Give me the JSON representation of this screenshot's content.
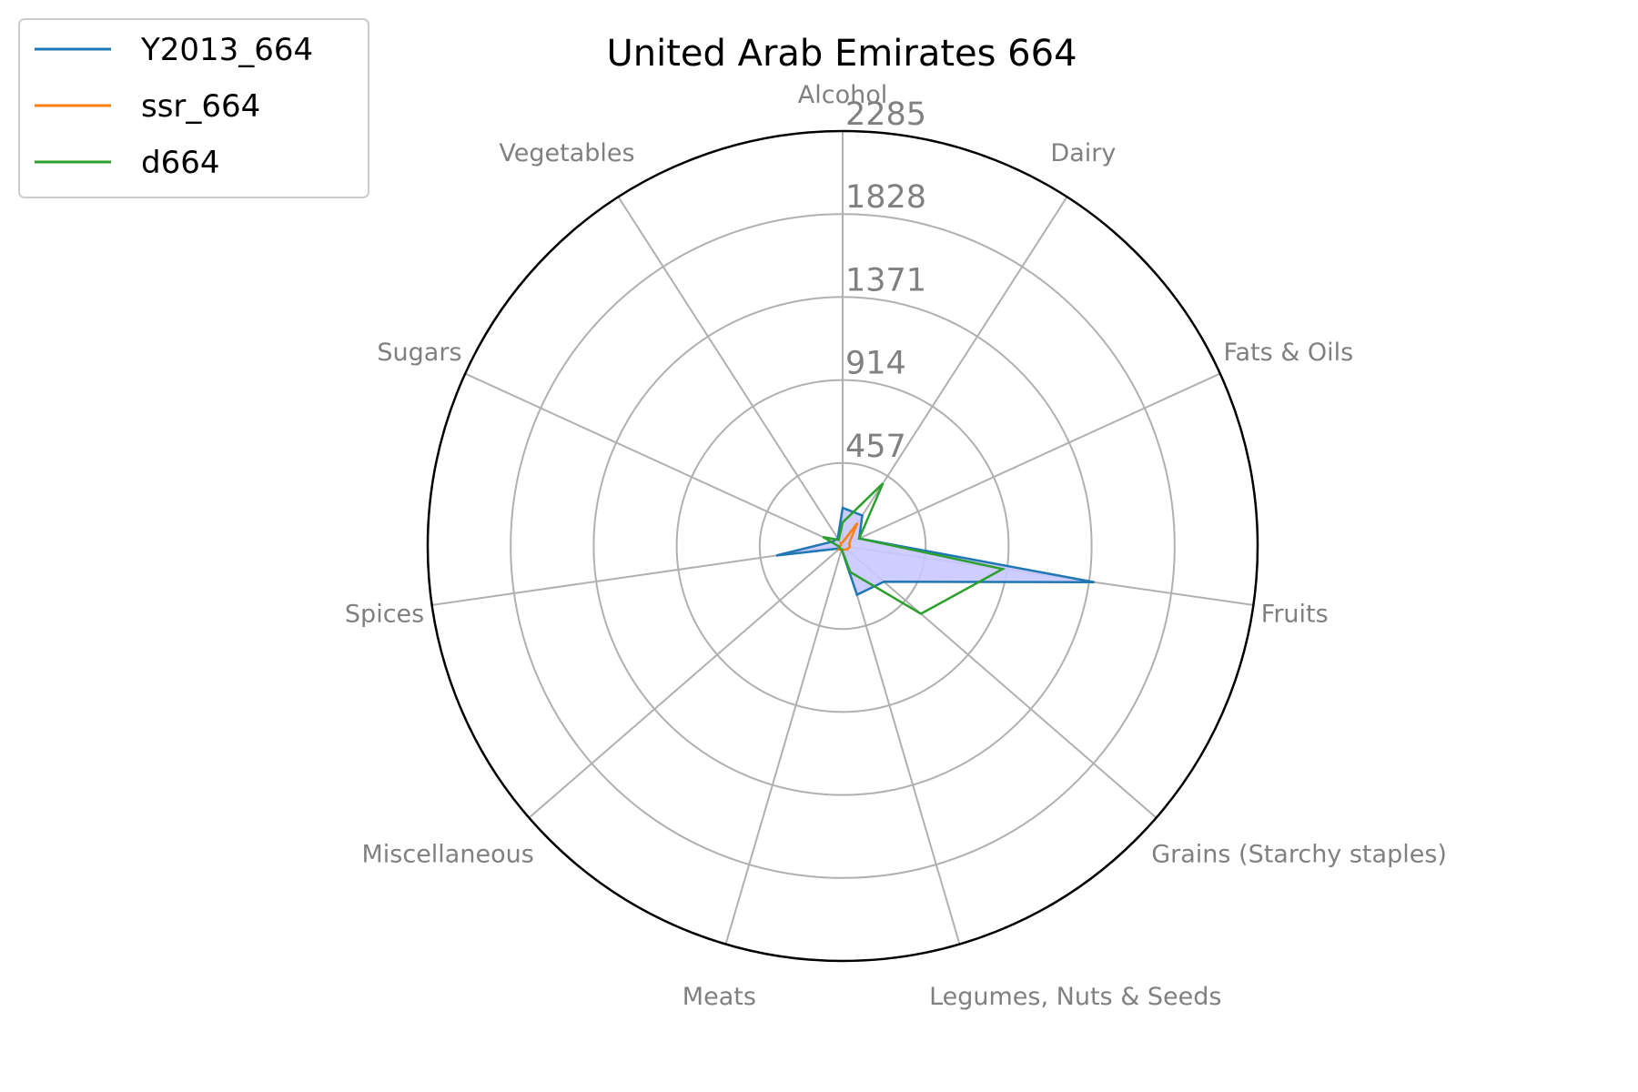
{
  "chart_data": {
    "type": "radar",
    "title": "United Arab Emirates 664",
    "categories": [
      "Alcohol",
      "Dairy",
      "Fats & Oils",
      "Fruits",
      "Grains (Starchy staples)",
      "Legumes, Nuts & Seeds",
      "Meats",
      "Miscellaneous",
      "Spices",
      "Sugars",
      "Vegetables"
    ],
    "r_ticks": [
      457,
      914,
      1371,
      1828,
      2285
    ],
    "r_max": 2285,
    "grid": true,
    "legend_position": "top-left",
    "series": [
      {
        "name": "Y2013_664",
        "color": "#1f77b4",
        "values": [
          210,
          200,
          100,
          1400,
          300,
          280,
          20,
          20,
          370,
          60,
          50
        ]
      },
      {
        "name": "ssr_664",
        "color": "#ff7f0e",
        "values": [
          20,
          150,
          40,
          40,
          30,
          20,
          20,
          30,
          15,
          10,
          20
        ]
      },
      {
        "name": "d664",
        "color": "#2ca02c",
        "values": [
          130,
          410,
          100,
          890,
          570,
          150,
          20,
          20,
          20,
          120,
          40
        ]
      }
    ],
    "fill_color": "#c8c8ff"
  }
}
